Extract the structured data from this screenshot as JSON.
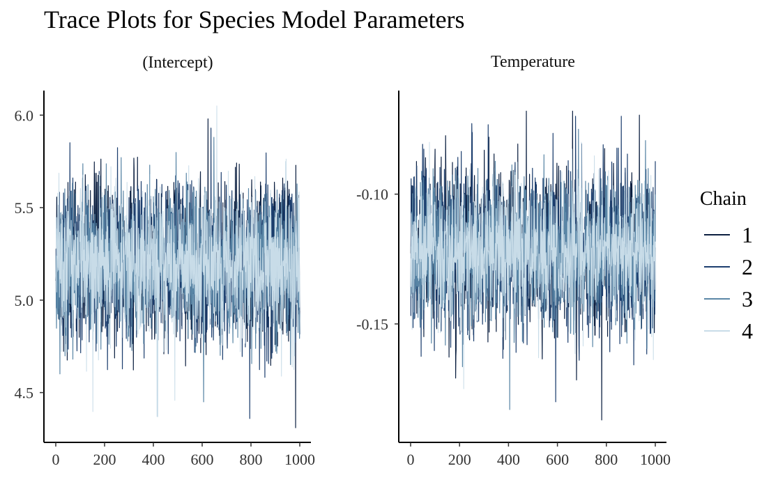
{
  "title": "Trace Plots for Species Model Parameters",
  "legend": {
    "title": "Chain",
    "items": [
      {
        "label": "1",
        "color": "#0b1f40"
      },
      {
        "label": "2",
        "color": "#1c3e6e"
      },
      {
        "label": "3",
        "color": "#5a86a6"
      },
      {
        "label": "4",
        "color": "#c8dce8"
      }
    ]
  },
  "chart_data": [
    {
      "type": "line",
      "facet": "(Intercept)",
      "xlabel": "",
      "ylabel": "",
      "xlim": [
        0,
        1000
      ],
      "ylim": [
        4.31,
        6.05
      ],
      "x_ticks": [
        "0",
        "200",
        "400",
        "600",
        "800",
        "1000"
      ],
      "y_ticks": [
        "4.5",
        "5.0",
        "5.5",
        "6.0"
      ],
      "y_tick_values": [
        4.5,
        5.0,
        5.5,
        6.0
      ],
      "n_iterations": 1000,
      "series": [
        {
          "name": "1",
          "mean": 5.2,
          "sd": 0.21,
          "min": 4.31,
          "max": 5.98
        },
        {
          "name": "2",
          "mean": 5.2,
          "sd": 0.21,
          "min": 4.36,
          "max": 5.93
        },
        {
          "name": "3",
          "mean": 5.2,
          "sd": 0.2,
          "min": 4.45,
          "max": 5.88
        },
        {
          "name": "4",
          "mean": 5.2,
          "sd": 0.2,
          "min": 4.37,
          "max": 6.05
        }
      ]
    },
    {
      "type": "line",
      "facet": "Temperature",
      "xlabel": "",
      "ylabel": "",
      "xlim": [
        0,
        1000
      ],
      "ylim": [
        -0.19,
        -0.066
      ],
      "x_ticks": [
        "0",
        "200",
        "400",
        "600",
        "800",
        "1000"
      ],
      "y_ticks": [
        "-0.15",
        "-0.10"
      ],
      "y_tick_values": [
        -0.15,
        -0.1
      ],
      "n_iterations": 1000,
      "series": [
        {
          "name": "1",
          "mean": -0.122,
          "sd": 0.015,
          "min": -0.187,
          "max": -0.068
        },
        {
          "name": "2",
          "mean": -0.122,
          "sd": 0.015,
          "min": -0.18,
          "max": -0.07
        },
        {
          "name": "3",
          "mean": -0.122,
          "sd": 0.014,
          "min": -0.183,
          "max": -0.075
        },
        {
          "name": "4",
          "mean": -0.122,
          "sd": 0.014,
          "min": -0.175,
          "max": -0.08
        }
      ]
    }
  ]
}
